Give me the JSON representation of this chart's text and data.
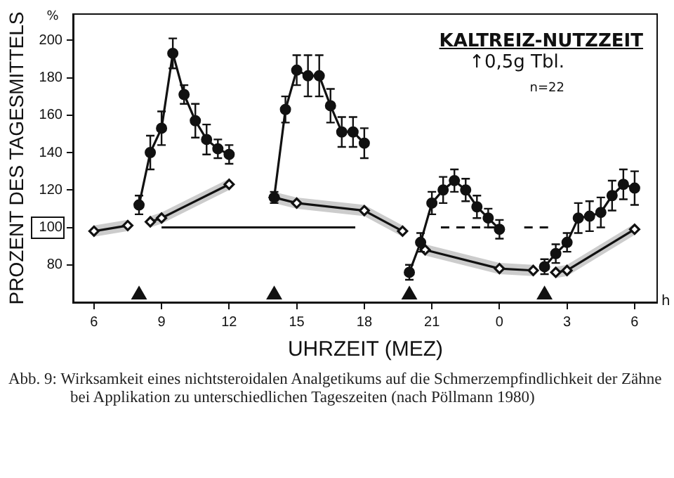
{
  "chart_data": {
    "type": "line",
    "ylabel": "PROZENT DES TAGESMITTELS",
    "xlabel": "UHRZEIT (MEZ)",
    "annotations": [
      "KALTREIZ-NUTZZEIT",
      "↑0,5g Tbl.",
      "n=22",
      "%",
      "h",
      "Abb. 9: Wirksamkeit eines nichtsteroidalen Analgetikums auf die Schmerzempfindlichkeit der Zähne bei Applikation zu unterschiedlichen Tageszeiten (nach Pöllmann 1980)"
    ],
    "xlim": [
      "--01-01T05:06",
      "--01-02T07:00"
    ],
    "xticks": [
      {
        "value": "--01-01T06:00",
        "label": "6"
      },
      {
        "value": "--01-01T09:00",
        "label": "9"
      },
      {
        "value": "--01-01T12:00",
        "label": "12"
      },
      {
        "value": "--01-01T15:00",
        "label": "15"
      },
      {
        "value": "--01-01T18:00",
        "label": "18"
      },
      {
        "value": "--01-01T21:00",
        "label": "21"
      },
      {
        "value": "--01-02T00:00",
        "label": "0"
      },
      {
        "value": "--01-02T03:00",
        "label": "3"
      },
      {
        "value": "--01-02T06:00",
        "label": "6"
      }
    ],
    "ylim": [
      60,
      214
    ],
    "yticks": [
      80,
      {
        "value": 100,
        "label": "100"
      },
      120,
      140,
      160,
      180,
      200
    ],
    "legend": false,
    "grid": false,
    "series": [
      {
        "type": "line",
        "color": "#111111",
        "marker": "circle",
        "x": [
          "--01-01T08:00",
          "--01-01T08:30",
          "--01-01T09:00",
          "--01-01T09:30",
          "--01-01T10:00",
          "--01-01T10:30",
          "--01-01T11:00",
          "--01-01T11:30",
          "--01-01T12:00",
          "--01-01T13:00",
          "--01-01T14:00",
          "--01-01T14:30",
          "--01-01T15:00",
          "--01-01T15:30",
          "--01-01T16:00",
          "--01-01T16:30",
          "--01-01T17:00",
          "--01-01T17:30",
          "--01-01T18:00",
          "--01-01T19:00",
          "--01-01T20:00",
          "--01-01T20:30",
          "--01-01T21:00",
          "--01-01T21:30",
          "--01-01T22:00",
          "--01-01T22:30",
          "--01-01T23:00",
          "--01-01T23:30",
          "--01-02T00:00",
          "--01-02T01:00",
          "--01-02T02:00",
          "--01-02T02:30",
          "--01-02T03:00",
          "--01-02T03:30",
          "--01-02T04:00",
          "--01-02T04:30",
          "--01-02T05:00",
          "--01-02T05:30",
          "--01-02T06:00"
        ],
        "values": [
          112,
          140,
          153,
          193,
          171,
          157,
          147,
          142,
          139,
          null,
          116,
          163,
          184,
          181,
          181,
          165,
          151,
          151,
          145,
          null,
          76,
          92,
          113,
          120,
          125,
          120,
          111,
          105,
          99,
          null,
          79,
          86,
          92,
          105,
          106,
          108,
          117,
          123,
          121
        ],
        "errors": [
          5,
          9,
          9,
          8,
          5,
          9,
          8,
          5,
          5,
          null,
          3,
          7,
          8,
          11,
          11,
          9,
          8,
          8,
          8,
          null,
          4,
          5,
          6,
          7,
          6,
          6,
          6,
          5,
          5,
          null,
          4,
          5,
          5,
          8,
          8,
          8,
          8,
          8,
          9
        ]
      },
      {
        "type": "line",
        "color": "#111111",
        "marker": "diamond",
        "x": [
          "--01-01T06:00",
          "--01-01T07:30",
          "--01-01T08:00",
          "--01-01T08:30",
          "--01-01T09:00",
          "--01-01T12:00",
          "--01-01T13:00",
          "--01-01T14:00",
          "--01-01T15:00",
          "--01-01T18:00",
          "--01-01T19:42",
          "--01-01T20:00",
          "--01-01T20:42",
          "--01-02T00:00",
          "--01-02T01:30",
          "--01-02T02:00",
          "--01-02T02:30",
          "--01-02T03:00",
          "--01-02T06:00"
        ],
        "values": [
          98,
          101,
          null,
          103,
          105,
          123,
          null,
          116,
          113,
          109,
          98,
          null,
          88,
          78,
          77,
          null,
          76,
          77,
          99
        ],
        "lower": [
          95,
          98,
          null,
          100,
          102,
          120,
          null,
          113,
          110,
          106,
          95,
          null,
          85,
          75,
          74,
          null,
          73,
          74,
          96
        ],
        "upper": [
          101,
          104,
          null,
          106,
          108,
          126,
          null,
          119,
          116,
          112,
          101,
          null,
          91,
          81,
          80,
          null,
          79,
          80,
          102
        ]
      },
      {
        "type": "line",
        "color": "#111111",
        "marker": "none",
        "line_style": "solid",
        "x": [
          "--01-01T09:00",
          "--01-01T17:36"
        ],
        "values": [
          100,
          100
        ]
      },
      {
        "type": "line",
        "color": "#111111",
        "marker": "none",
        "line_style": "dashed",
        "x": [
          "--01-01T21:24",
          "--01-01T23:48",
          "--01-02T00:30",
          "--01-02T01:06",
          "--01-02T02:18"
        ],
        "values": [
          100,
          100,
          null,
          100,
          100
        ]
      },
      {
        "type": "scatter",
        "color": "#111111",
        "marker": "triangle",
        "x": [
          "--01-01T08:00",
          "--01-01T14:00",
          "--01-01T20:00",
          "--01-02T02:00"
        ],
        "values": [
          64,
          64,
          64,
          64
        ]
      }
    ]
  }
}
